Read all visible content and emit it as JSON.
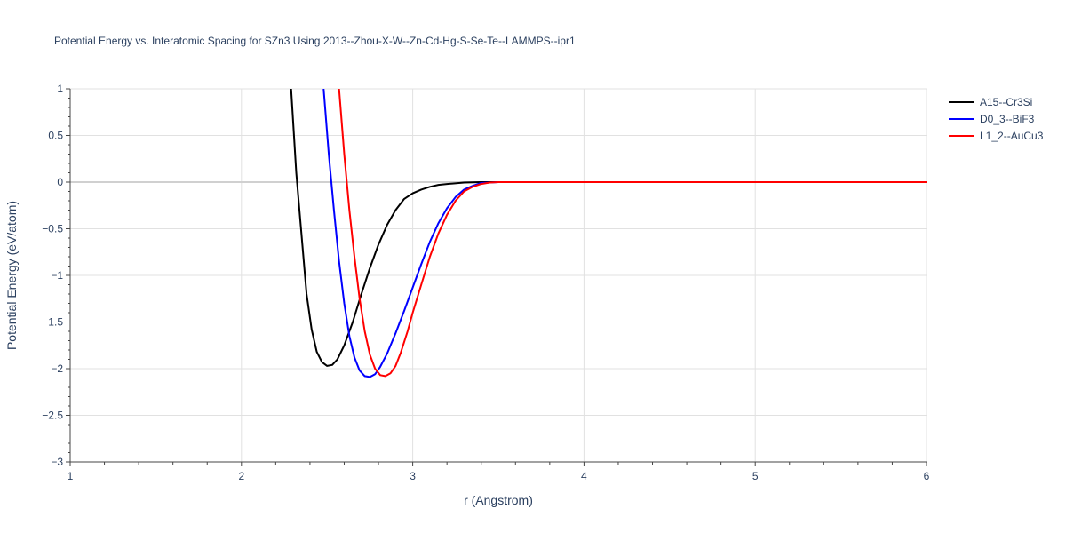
{
  "chart_data": {
    "type": "line",
    "title": "Potential Energy vs. Interatomic Spacing for SZn3 Using 2013--Zhou-X-W--Zn-Cd-Hg-S-Se-Te--LAMMPS--ipr1",
    "xlabel": "r (Angstrom)",
    "ylabel": "Potential Energy (eV/atom)",
    "xlim": [
      1,
      6
    ],
    "ylim": [
      -3,
      1
    ],
    "x_ticks": [
      1,
      2,
      3,
      4,
      5,
      6
    ],
    "x_tick_labels": [
      "1",
      "2",
      "3",
      "4",
      "5",
      "6"
    ],
    "y_ticks": [
      1,
      0.5,
      0,
      -0.5,
      -1,
      -1.5,
      -2,
      -2.5,
      -3
    ],
    "y_tick_labels": [
      "1",
      "0.5",
      "0",
      "−0.5",
      "−1",
      "−1.5",
      "−2",
      "−2.5",
      "−3"
    ],
    "grid": true,
    "legend_position": "top-right",
    "series": [
      {
        "name": "A15--Cr3Si",
        "color": "#000000",
        "x": [
          2.29,
          2.32,
          2.35,
          2.38,
          2.41,
          2.44,
          2.47,
          2.5,
          2.53,
          2.56,
          2.6,
          2.65,
          2.7,
          2.75,
          2.8,
          2.85,
          2.9,
          2.95,
          3.0,
          3.05,
          3.1,
          3.15,
          3.2,
          3.3,
          3.4,
          3.5,
          4.0,
          5.0,
          6.0
        ],
        "y": [
          1.0,
          0.1,
          -0.55,
          -1.2,
          -1.58,
          -1.82,
          -1.93,
          -1.97,
          -1.96,
          -1.9,
          -1.75,
          -1.5,
          -1.2,
          -0.92,
          -0.67,
          -0.46,
          -0.3,
          -0.18,
          -0.12,
          -0.08,
          -0.05,
          -0.03,
          -0.02,
          -0.005,
          0.0,
          0.0,
          0.0,
          0.0,
          0.0
        ]
      },
      {
        "name": "D0_3--BiF3",
        "color": "#0000ff",
        "x": [
          2.48,
          2.51,
          2.54,
          2.57,
          2.6,
          2.63,
          2.66,
          2.69,
          2.72,
          2.75,
          2.78,
          2.81,
          2.85,
          2.9,
          2.95,
          3.0,
          3.05,
          3.1,
          3.15,
          3.2,
          3.25,
          3.3,
          3.35,
          3.4,
          3.5,
          4.0,
          5.0,
          6.0
        ],
        "y": [
          1.0,
          0.3,
          -0.3,
          -0.85,
          -1.3,
          -1.65,
          -1.88,
          -2.02,
          -2.08,
          -2.09,
          -2.06,
          -1.98,
          -1.84,
          -1.62,
          -1.38,
          -1.13,
          -0.88,
          -0.64,
          -0.44,
          -0.28,
          -0.16,
          -0.08,
          -0.04,
          -0.01,
          0.0,
          0.0,
          0.0,
          0.0
        ]
      },
      {
        "name": "L1_2--AuCu3",
        "color": "#ff0000",
        "x": [
          2.57,
          2.6,
          2.63,
          2.66,
          2.69,
          2.72,
          2.75,
          2.78,
          2.81,
          2.84,
          2.87,
          2.9,
          2.93,
          2.97,
          3.0,
          3.05,
          3.1,
          3.15,
          3.2,
          3.25,
          3.3,
          3.35,
          3.4,
          3.45,
          3.5,
          4.0,
          5.0,
          6.0
        ],
        "y": [
          1.0,
          0.3,
          -0.3,
          -0.8,
          -1.25,
          -1.6,
          -1.85,
          -2.0,
          -2.07,
          -2.08,
          -2.05,
          -1.97,
          -1.83,
          -1.6,
          -1.4,
          -1.1,
          -0.8,
          -0.55,
          -0.35,
          -0.2,
          -0.1,
          -0.05,
          -0.02,
          -0.005,
          0.0,
          0.0,
          0.0,
          0.0
        ]
      }
    ]
  }
}
